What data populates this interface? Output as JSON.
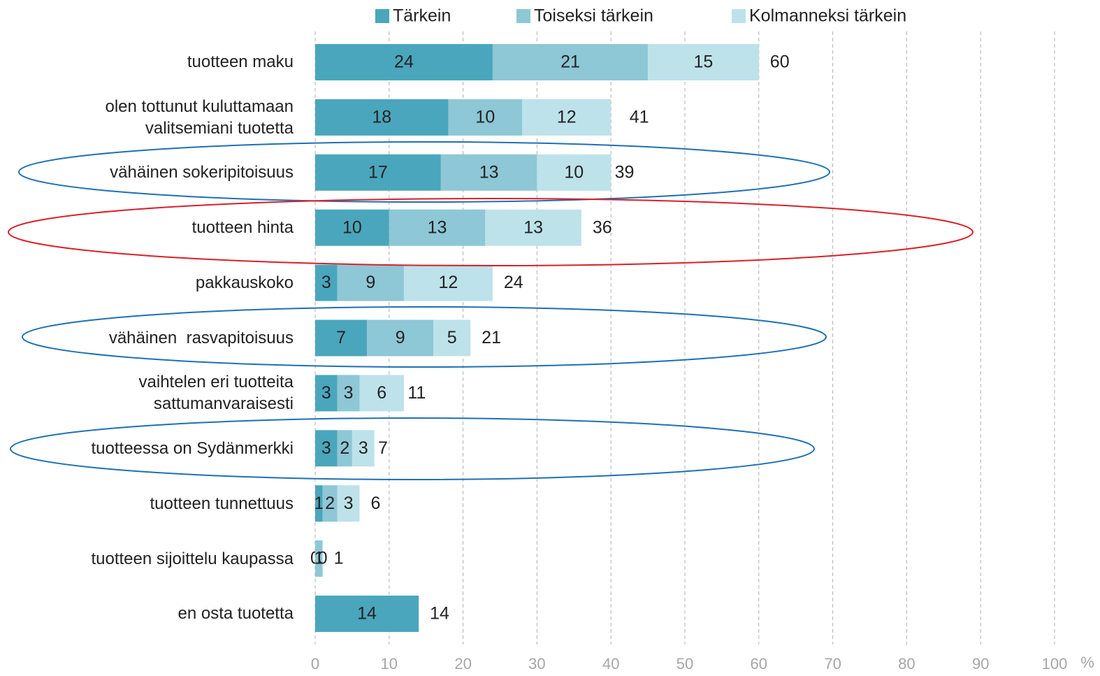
{
  "chart_data": {
    "type": "stacked_bar_horizontal",
    "categories": [
      "tuotteen maku",
      "olen tottunut kuluttamaan valitsemiani tuotetta",
      "vähäinen sokeripitoisuus",
      "tuotteen hinta",
      "pakkauskoko",
      "vähäinen  rasvapitoisuus",
      "vaihtelen eri tuotteita sattumanvaraisesti",
      "tuotteessa on Sydänmerkki",
      "tuotteen tunnettuus",
      "tuotteen sijoittelu kaupassa",
      "en osta tuotetta"
    ],
    "series": [
      {
        "name": "Tärkein",
        "color": "#4aa6bc",
        "values": [
          24,
          18,
          17,
          10,
          3,
          7,
          3,
          3,
          1,
          0,
          14
        ]
      },
      {
        "name": "Toiseksi tärkein",
        "color": "#8ec7d5",
        "values": [
          21,
          10,
          13,
          13,
          9,
          9,
          3,
          2,
          2,
          1,
          null
        ]
      },
      {
        "name": "Kolmanneksi tärkein",
        "color": "#bde2ea",
        "values": [
          15,
          12,
          10,
          13,
          12,
          5,
          6,
          3,
          3,
          0,
          null
        ]
      }
    ],
    "totals": [
      60,
      41,
      39,
      36,
      24,
      21,
      11,
      7,
      6,
      1,
      14
    ],
    "xlim": [
      0,
      100
    ],
    "xticks": [
      0,
      10,
      20,
      30,
      40,
      50,
      60,
      70,
      80,
      90,
      100
    ],
    "x_unit": "%",
    "grid": true,
    "legend": "top"
  }
}
